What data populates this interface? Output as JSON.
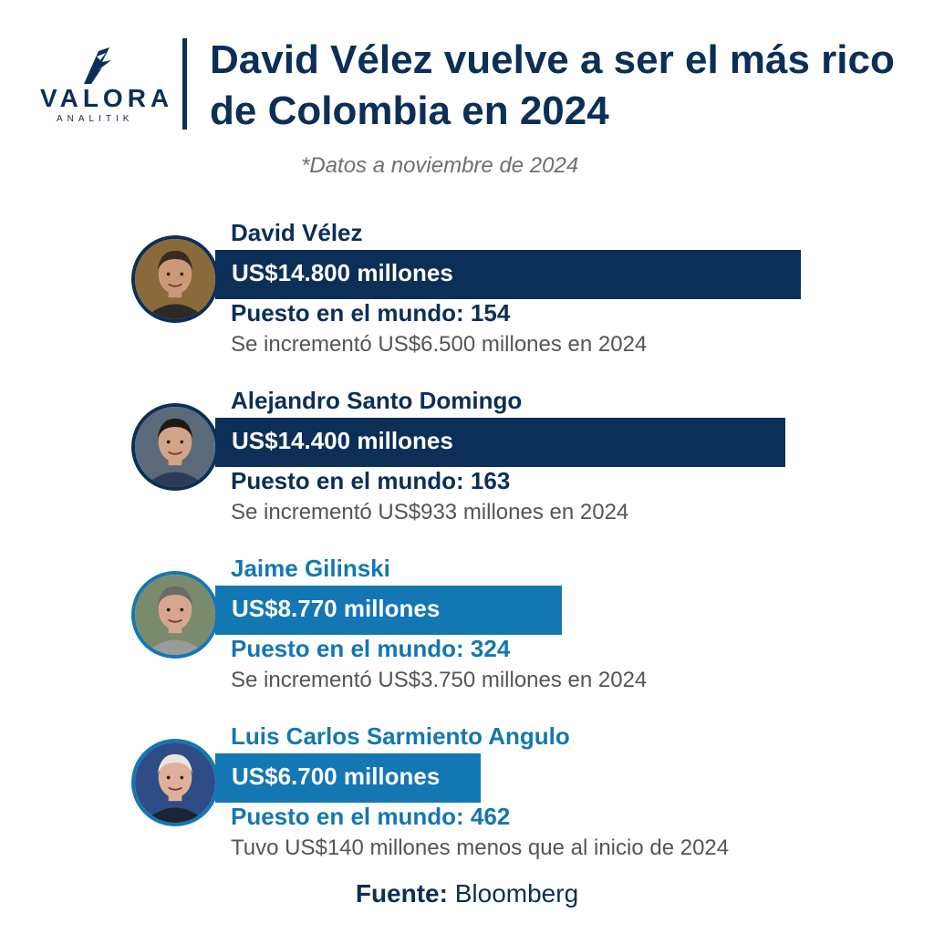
{
  "logo": {
    "name": "VALORA",
    "tagline": "ANALITIK"
  },
  "header": {
    "title": "David Vélez vuelve a ser el más rico de Colombia en 2024",
    "subtitle": "*Datos a noviembre de 2024"
  },
  "colors": {
    "dark": "#0b2f57",
    "light": "#1377b3",
    "gray_text": "#555555"
  },
  "chart_data": {
    "type": "bar",
    "orientation": "horizontal",
    "unit": "US$ millones",
    "categories": [
      "David Vélez",
      "Alejandro Santo Domingo",
      "Jaime Gilinski",
      "Luis Carlos Sarmiento Angulo"
    ],
    "values": [
      14800,
      14400,
      8770,
      6700
    ],
    "entries": [
      {
        "name": "David Vélez",
        "value": 14800,
        "value_label": "US$14.800 millones",
        "rank_label": "Puesto en el mundo: 154",
        "change_label": "Se incrementó US$6.500 millones en 2024",
        "tone": "dark"
      },
      {
        "name": "Alejandro Santo Domingo",
        "value": 14400,
        "value_label": "US$14.400 millones",
        "rank_label": "Puesto en el mundo: 163",
        "change_label": "Se incrementó US$933 millones en 2024",
        "tone": "dark"
      },
      {
        "name": "Jaime Gilinski",
        "value": 8770,
        "value_label": "US$8.770 millones",
        "rank_label": "Puesto en el mundo: 324",
        "change_label": "Se incrementó US$3.750 millones en 2024",
        "tone": "light"
      },
      {
        "name": "Luis Carlos Sarmiento Angulo",
        "value": 6700,
        "value_label": "US$6.700 millones",
        "rank_label": "Puesto en el mundo: 462",
        "change_label": "Tuvo US$140 millones menos que al inicio de 2024",
        "tone": "light"
      }
    ]
  },
  "footer": {
    "source_label": "Fuente:",
    "source_value": "Bloomberg"
  }
}
